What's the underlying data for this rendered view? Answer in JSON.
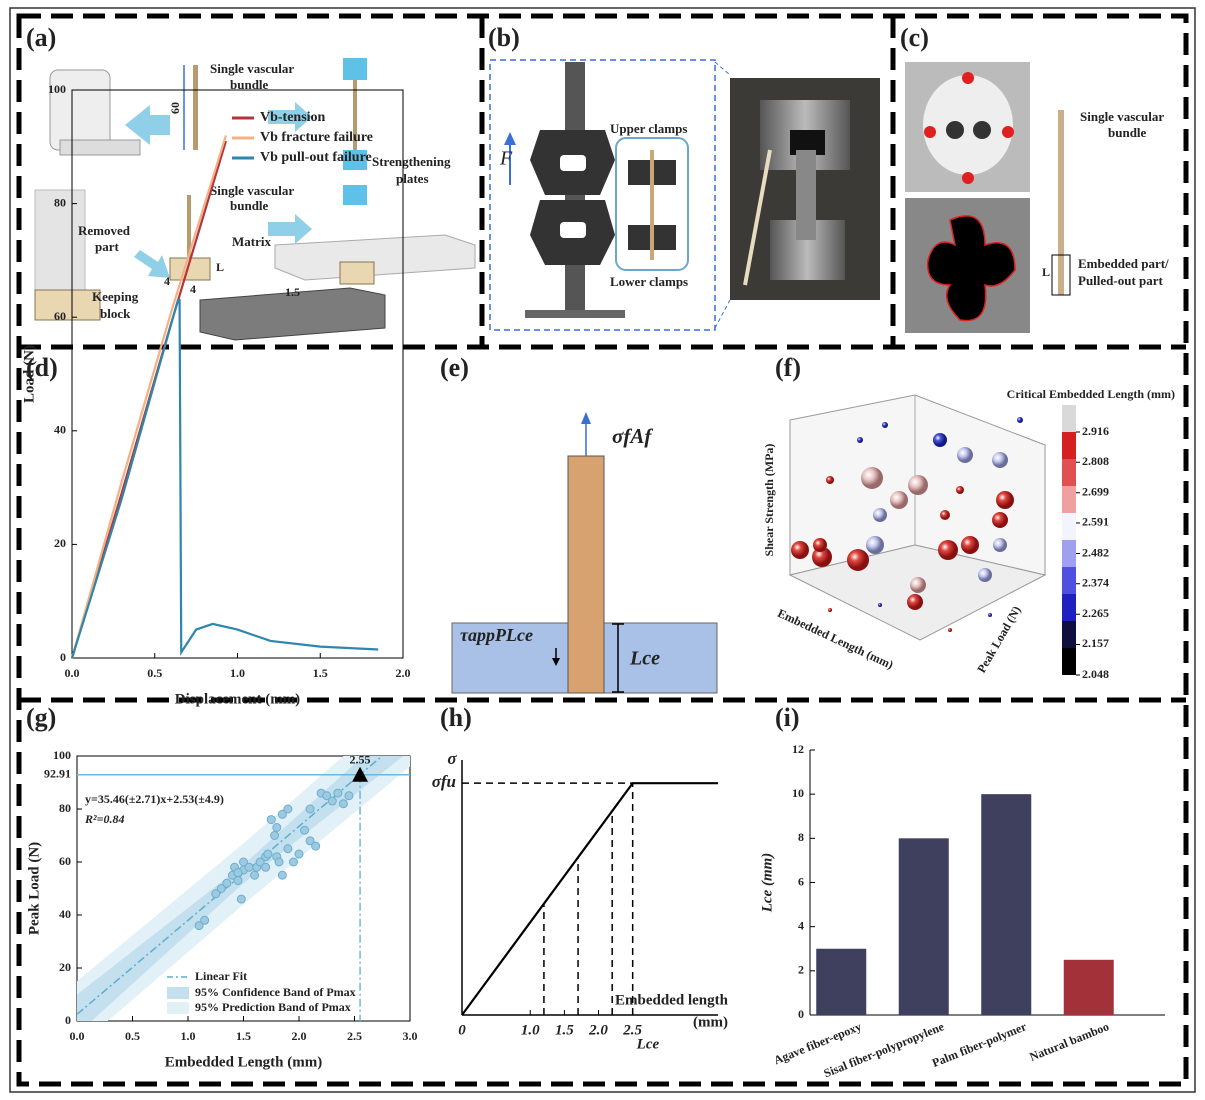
{
  "panel_a": {
    "label": "(a)",
    "bundle_top": [
      "Single vascular",
      "bundle"
    ],
    "bundle_mid": [
      "Single vascular",
      "bundle"
    ],
    "strengthening": [
      "Strengthening",
      "plates"
    ],
    "removed": [
      "Removed",
      "part"
    ],
    "matrix": "Matrix",
    "keeping": [
      "Keeping",
      "block"
    ],
    "dim_60": "60",
    "dim_15": "1.5",
    "dim_l": "L",
    "dim_4a": "4",
    "dim_4b": "4"
  },
  "panel_b": {
    "label": "(b)",
    "force": "F",
    "upper": "Upper clamps",
    "lower": "Lower clamps"
  },
  "panel_c": {
    "label": "(c)",
    "bundle": [
      "Single vascular",
      "bundle"
    ],
    "embedded": [
      "Embedded part/",
      "Pulled-out part"
    ],
    "dim_l": "L"
  },
  "panel_e": {
    "label": "(e)",
    "top": "σfAf",
    "side": "τappPLce",
    "length": "Lce"
  },
  "panel_f": {
    "label": "(f)",
    "colorbar_title": "Critical Embedded Length (mm)",
    "colorbar_ticks": [
      2.916,
      2.808,
      2.699,
      2.591,
      2.482,
      2.374,
      2.265,
      2.157,
      2.048
    ],
    "z_label": "Shear Strength (MPa)",
    "x_label": "Embedded Length (mm)",
    "y_label": "Peak Load (N)"
  },
  "chart_data": [
    {
      "type": "line",
      "label": "(d)",
      "xlabel": "Displacement (mm)",
      "ylabel": "Load (N)",
      "xlim": [
        0,
        2
      ],
      "xticks": [
        {
          "value": 0,
          "label": "0.0"
        },
        0.5,
        {
          "value": 1,
          "label": "1.0"
        },
        1.5,
        {
          "value": 2,
          "label": "2.0"
        }
      ],
      "ylim": [
        0,
        100
      ],
      "yticks": [
        0,
        20,
        40,
        60,
        80,
        100
      ],
      "legend": "upper right",
      "series": [
        {
          "name": "Vb-tension",
          "color": "#b5343c",
          "x": [
            0,
            0.3,
            0.6,
            0.93
          ],
          "values": [
            0,
            29,
            59,
            91
          ]
        },
        {
          "name": "Vb fracture failure",
          "color": "#f4b183",
          "x": [
            0,
            0.3,
            0.6,
            0.93
          ],
          "values": [
            0,
            31,
            61,
            92
          ]
        },
        {
          "name": "Vb pull-out failure",
          "color": "#2f86ad",
          "x": [
            0,
            0.3,
            0.64,
            0.65,
            0.66,
            0.75,
            0.85,
            1.0,
            1.2,
            1.5,
            1.85
          ],
          "values": [
            0,
            28,
            63,
            63,
            1,
            5,
            6,
            5,
            3,
            2,
            1.5
          ]
        }
      ]
    },
    {
      "type": "scatter",
      "label": "(g)",
      "xlabel": "Embedded Length (mm)",
      "ylabel": "Peak Load (N)",
      "xlim": [
        0,
        3
      ],
      "xticks": [
        {
          "value": 0,
          "label": "0.0"
        },
        0.5,
        {
          "value": 1,
          "label": "1.0"
        },
        1.5,
        {
          "value": 2,
          "label": "2.0"
        },
        2.5,
        {
          "value": 3,
          "label": "3.0"
        }
      ],
      "ylim": [
        0,
        100
      ],
      "yticks": [
        0,
        20,
        40,
        60,
        80,
        100
      ],
      "color": "#9ecae1",
      "x": [
        1.1,
        1.15,
        1.3,
        1.35,
        1.4,
        1.42,
        1.45,
        1.48,
        1.5,
        1.5,
        1.55,
        1.6,
        1.62,
        1.65,
        1.7,
        1.72,
        1.75,
        1.78,
        1.8,
        1.8,
        1.82,
        1.85,
        1.85,
        1.9,
        1.9,
        2.0,
        2.05,
        2.1,
        2.15,
        2.2,
        2.25,
        2.3,
        2.35,
        2.4,
        2.45,
        1.95,
        1.25,
        1.45,
        1.7,
        2.1
      ],
      "values": [
        36,
        38,
        50,
        52,
        55,
        58,
        53,
        46,
        57,
        60,
        58,
        55,
        58,
        60,
        62,
        63,
        76,
        70,
        73,
        62,
        60,
        55,
        78,
        80,
        65,
        63,
        72,
        68,
        66,
        86,
        85,
        83,
        86,
        82,
        85,
        60,
        48,
        56,
        58,
        80
      ],
      "fit": {
        "name": "Linear Fit",
        "color": "#5aaed0",
        "x": [
          0,
          3
        ],
        "values": [
          2.53,
          108.91
        ]
      },
      "bands": [
        {
          "name": "95% Prediction Band of Pmax",
          "color": "#e2f1f8",
          "x": [
            0,
            1.5,
            3
          ],
          "upper": [
            15,
            67,
            122
          ],
          "lower": [
            -10,
            44,
            96
          ]
        },
        {
          "name": "95% Confidence Band of Pmax",
          "color": "#c4e0ee",
          "x": [
            0,
            1.5,
            3
          ],
          "upper": [
            10,
            59,
            116
          ],
          "lower": [
            -5,
            52,
            102
          ]
        }
      ],
      "ref_x": 2.55,
      "ref_y": 92.91,
      "equation": "y=35.46(±2.71)x+2.53(±4.9)",
      "r2": "R²=0.84"
    },
    {
      "type": "line",
      "label": "(h)",
      "xlabel": "Embedded length",
      "xunit": "(mm)",
      "ylabel": "σ",
      "x_marker": "Lce",
      "xlim": [
        0,
        3.75
      ],
      "xticks": [
        0,
        {
          "value": 1,
          "label": "1.0"
        },
        1.5,
        {
          "value": 2,
          "label": "2.0"
        },
        2.5
      ],
      "ylim": [
        0,
        1.1
      ],
      "yticks": [
        {
          "value": 1,
          "label": "σfu"
        }
      ],
      "series": [
        {
          "color": "#000000",
          "x": [
            0,
            2.5,
            3.75
          ],
          "values": [
            0,
            1,
            1
          ]
        }
      ],
      "guides": [
        1.2,
        1.7,
        2.2,
        2.5
      ]
    },
    {
      "type": "bar",
      "label": "(i)",
      "ylabel": "Lce (mm)",
      "categories": [
        "Agave fiber-epoxy",
        "Sisal fiber-polypropylene",
        "Palm fiber-polymer",
        "Natural bamboo"
      ],
      "values": [
        3,
        8,
        10,
        2.5
      ],
      "colors": [
        "#3f3f5e",
        "#3f3f5e",
        "#3f3f5e",
        "#a3313a"
      ],
      "ylim": [
        0,
        12
      ],
      "yticks": [
        0,
        2,
        4,
        6,
        8,
        10,
        12
      ]
    }
  ]
}
